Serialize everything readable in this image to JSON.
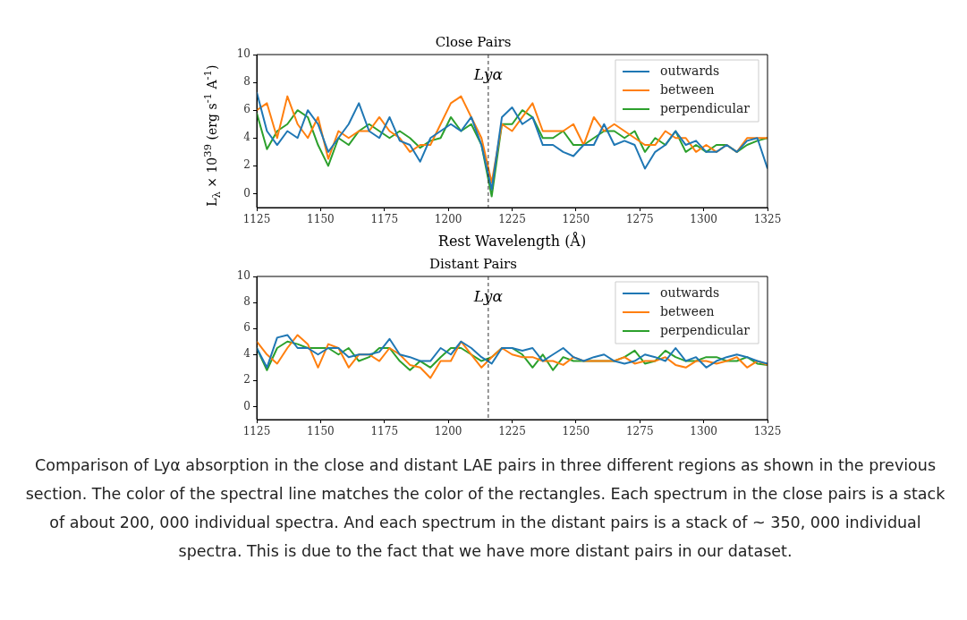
{
  "chart_data": [
    {
      "type": "line",
      "title": "Close Pairs",
      "xlabel": "Rest Wavelength (Å)",
      "ylabel": "L$_{λ}$ × 10$^{39}$  (erg s$^{-1}$ A$^{-1}$)",
      "x": [
        1125,
        1129,
        1133,
        1137,
        1141,
        1145,
        1149,
        1153,
        1157,
        1161,
        1165,
        1169,
        1173,
        1177,
        1181,
        1185,
        1189,
        1193,
        1197,
        1201,
        1205,
        1209,
        1213,
        1217,
        1221,
        1225,
        1229,
        1233,
        1237,
        1241,
        1245,
        1249,
        1253,
        1257,
        1261,
        1265,
        1269,
        1273,
        1277,
        1281,
        1285,
        1289,
        1293,
        1297,
        1301,
        1305,
        1309,
        1313,
        1317,
        1321,
        1325
      ],
      "series": [
        {
          "name": "outwards",
          "color": "#1f77b4",
          "values": [
            7.3,
            4.5,
            3.5,
            4.5,
            4.0,
            6.0,
            5.0,
            3.0,
            4.0,
            5.0,
            6.5,
            4.5,
            4.0,
            5.5,
            3.8,
            3.5,
            2.3,
            4.0,
            4.5,
            5.0,
            4.5,
            5.5,
            3.5,
            0.3,
            5.5,
            6.2,
            5.0,
            5.5,
            3.5,
            3.5,
            3.0,
            2.7,
            3.5,
            3.5,
            5.0,
            3.5,
            3.8,
            3.5,
            1.8,
            3.0,
            3.5,
            4.5,
            3.5,
            3.8,
            3.0,
            3.0,
            3.5,
            3.0,
            3.8,
            4.0,
            1.8
          ]
        },
        {
          "name": "between",
          "color": "#ff7f0e",
          "values": [
            6.0,
            6.5,
            4.0,
            7.0,
            5.0,
            4.0,
            5.5,
            2.5,
            4.5,
            4.0,
            4.5,
            4.5,
            5.5,
            4.5,
            4.0,
            3.0,
            3.5,
            3.5,
            5.0,
            6.5,
            7.0,
            5.5,
            4.0,
            0.8,
            5.0,
            4.5,
            5.5,
            6.5,
            4.5,
            4.5,
            4.5,
            5.0,
            3.5,
            5.5,
            4.5,
            5.0,
            4.5,
            4.0,
            3.5,
            3.5,
            4.5,
            4.0,
            4.0,
            3.0,
            3.5,
            3.0,
            3.5,
            3.0,
            4.0,
            4.0,
            4.0
          ]
        },
        {
          "name": "perpendicular",
          "color": "#2ca02c",
          "values": [
            5.8,
            3.2,
            4.5,
            5.0,
            6.0,
            5.5,
            3.5,
            2.0,
            4.0,
            3.5,
            4.5,
            5.0,
            4.5,
            4.0,
            4.5,
            4.0,
            3.3,
            3.8,
            4.0,
            5.5,
            4.5,
            5.0,
            3.5,
            -0.2,
            5.0,
            5.0,
            6.0,
            5.5,
            4.0,
            4.0,
            4.5,
            3.5,
            3.5,
            4.0,
            4.5,
            4.5,
            4.0,
            4.5,
            3.0,
            4.0,
            3.5,
            4.5,
            3.0,
            3.5,
            3.0,
            3.5,
            3.5,
            3.0,
            3.5,
            3.8,
            4.0
          ]
        }
      ],
      "xlim": [
        1125,
        1325
      ],
      "xticks": [
        1125,
        1150,
        1175,
        1200,
        1225,
        1250,
        1275,
        1300,
        1325
      ],
      "ylim": [
        -1,
        10
      ],
      "yticks": [
        0,
        2,
        4,
        6,
        8,
        10
      ],
      "ref_lines": [
        {
          "axis": "x",
          "value": 1215.67,
          "label": "Lyα",
          "line_style": "dashed"
        }
      ],
      "legend": "top right"
    },
    {
      "type": "line",
      "title": "Distant Pairs",
      "x": [
        1125,
        1129,
        1133,
        1137,
        1141,
        1145,
        1149,
        1153,
        1157,
        1161,
        1165,
        1169,
        1173,
        1177,
        1181,
        1185,
        1189,
        1193,
        1197,
        1201,
        1205,
        1209,
        1213,
        1217,
        1221,
        1225,
        1229,
        1233,
        1237,
        1241,
        1245,
        1249,
        1253,
        1257,
        1261,
        1265,
        1269,
        1273,
        1277,
        1281,
        1285,
        1289,
        1293,
        1297,
        1301,
        1305,
        1309,
        1313,
        1317,
        1321,
        1325
      ],
      "series": [
        {
          "name": "outwards",
          "color": "#1f77b4",
          "values": [
            4.5,
            3.0,
            5.3,
            5.5,
            4.5,
            4.5,
            4.0,
            4.5,
            4.5,
            3.8,
            4.0,
            4.0,
            4.2,
            5.2,
            4.0,
            3.8,
            3.5,
            3.5,
            4.5,
            4.0,
            5.0,
            4.5,
            3.8,
            3.3,
            4.5,
            4.5,
            4.3,
            4.5,
            3.5,
            4.0,
            4.5,
            3.8,
            3.5,
            3.8,
            4.0,
            3.5,
            3.3,
            3.5,
            4.0,
            3.8,
            3.5,
            4.5,
            3.5,
            3.8,
            3.0,
            3.5,
            3.8,
            4.0,
            3.8,
            3.5,
            3.3
          ]
        },
        {
          "name": "between",
          "color": "#ff7f0e",
          "values": [
            5.0,
            4.0,
            3.3,
            4.5,
            5.5,
            4.8,
            3.0,
            4.8,
            4.5,
            3.0,
            4.0,
            4.0,
            3.5,
            4.5,
            4.0,
            3.2,
            3.0,
            2.2,
            3.5,
            3.5,
            5.0,
            4.0,
            3.0,
            3.8,
            4.5,
            4.0,
            3.8,
            3.8,
            3.5,
            3.5,
            3.2,
            3.8,
            3.5,
            3.5,
            3.5,
            3.5,
            3.8,
            3.3,
            3.5,
            3.5,
            3.8,
            3.2,
            3.0,
            3.5,
            3.5,
            3.3,
            3.5,
            3.8,
            3.0,
            3.5,
            3.2
          ]
        },
        {
          "name": "perpendicular",
          "color": "#2ca02c",
          "values": [
            4.5,
            2.8,
            4.5,
            5.0,
            4.8,
            4.5,
            4.5,
            4.5,
            4.0,
            4.5,
            3.5,
            3.8,
            4.5,
            4.5,
            3.5,
            2.8,
            3.5,
            3.0,
            3.8,
            4.5,
            4.5,
            4.0,
            3.5,
            3.8,
            4.5,
            4.5,
            4.0,
            3.0,
            4.0,
            2.8,
            3.8,
            3.5,
            3.5,
            3.5,
            3.5,
            3.5,
            3.8,
            4.3,
            3.3,
            3.5,
            4.3,
            3.8,
            3.5,
            3.5,
            3.8,
            3.8,
            3.5,
            3.5,
            3.8,
            3.3,
            3.2
          ]
        }
      ],
      "xlim": [
        1125,
        1325
      ],
      "xticks": [
        1125,
        1150,
        1175,
        1200,
        1225,
        1250,
        1275,
        1300,
        1325
      ],
      "ylim": [
        -1,
        10
      ],
      "yticks": [
        0,
        2,
        4,
        6,
        8,
        10
      ],
      "ref_lines": [
        {
          "axis": "x",
          "value": 1215.67,
          "label": "Lyα",
          "line_style": "dashed"
        }
      ],
      "legend": "top right",
      "annotations": [
        "Comparison of Lyα absorption in the close and distant LAE pairs in three different regions as shown in the previous section. The color of the spectral line matches the color of the rectangles. Each spectrum in the close pairs is a stack of about 200, 000 individual spectra. And each spectrum in the distant pairs is a stack of ~ 350, 000 individual spectra. This is due to the fact that we have more distant pairs in our dataset."
      ]
    }
  ]
}
